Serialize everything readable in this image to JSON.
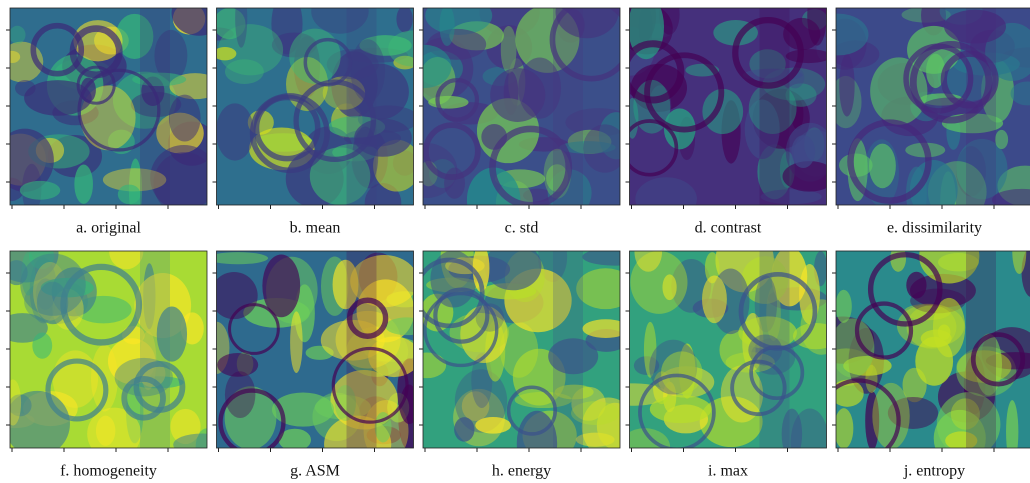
{
  "figure": {
    "captions": [
      "a. original",
      "b. mean",
      "c. std",
      "d. contrast",
      "e. dissimilarity",
      "f. homogeneity",
      "g. ASM",
      "h. energy",
      "i. max",
      "j. entropy"
    ]
  }
}
